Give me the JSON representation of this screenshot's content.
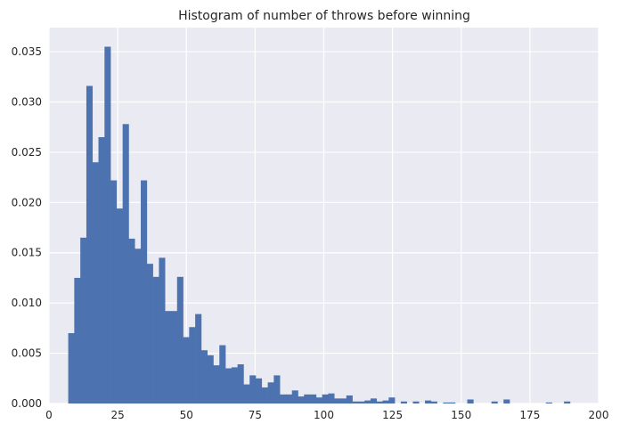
{
  "chart_data": {
    "type": "bar",
    "title": "Histogram of number of throws before winning",
    "xlabel": "",
    "ylabel": "",
    "xlim": [
      0,
      200
    ],
    "ylim": [
      0,
      0.0374
    ],
    "grid": true,
    "xticks": [
      0,
      25,
      50,
      75,
      100,
      125,
      150,
      175,
      200
    ],
    "xtick_labels": [
      "0",
      "25",
      "50",
      "75",
      "100",
      "125",
      "150",
      "175",
      "200"
    ],
    "yticks": [
      0.0,
      0.005,
      0.01,
      0.015,
      0.02,
      0.025,
      0.03,
      0.035
    ],
    "ytick_labels": [
      "0.000",
      "0.005",
      "0.010",
      "0.015",
      "0.020",
      "0.025",
      "0.030",
      "0.035"
    ],
    "bin_start": 7,
    "bin_width": 2.2,
    "values": [
      0.007,
      0.0125,
      0.0165,
      0.0316,
      0.024,
      0.0265,
      0.0355,
      0.0222,
      0.0194,
      0.0278,
      0.0164,
      0.0154,
      0.0222,
      0.0139,
      0.0126,
      0.0145,
      0.0092,
      0.0092,
      0.0126,
      0.0066,
      0.0076,
      0.0089,
      0.0053,
      0.0048,
      0.0038,
      0.0058,
      0.0035,
      0.0036,
      0.0039,
      0.0019,
      0.0028,
      0.0025,
      0.0016,
      0.0021,
      0.0028,
      0.0009,
      0.0009,
      0.0013,
      0.0007,
      0.0009,
      0.0009,
      0.0006,
      0.0009,
      0.001,
      0.0005,
      0.0005,
      0.0008,
      0.0002,
      0.0002,
      0.0003,
      0.0005,
      0.0002,
      0.0003,
      0.0006,
      0.0,
      0.0002,
      0.0,
      0.0002,
      0.0,
      0.0003,
      0.0002,
      0.0,
      0.0001,
      0.0001,
      0.0,
      0.0,
      0.0004,
      0.0,
      0.0,
      0.0,
      0.0002,
      0.0,
      0.0004,
      0.0,
      0.0,
      0.0,
      0.0,
      0.0,
      0.0,
      0.0001,
      0.0,
      0.0,
      0.0002
    ],
    "colors": {
      "bar": "#4c72b0",
      "background": "#eaeaf2",
      "grid": "#ffffff",
      "text": "#262626"
    }
  }
}
